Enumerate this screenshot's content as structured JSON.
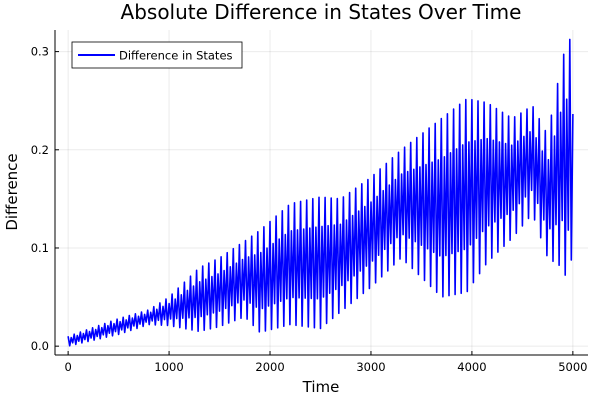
{
  "chart_data": {
    "type": "line",
    "title": "Absolute Difference in States Over Time",
    "xlabel": "Time",
    "ylabel": "Difference",
    "xlim": [
      -130,
      5150
    ],
    "ylim": [
      -0.009,
      0.322
    ],
    "xticks": [
      0,
      1000,
      2000,
      3000,
      4000,
      5000
    ],
    "xtick_labels": [
      "0",
      "1000",
      "2000",
      "3000",
      "4000",
      "5000"
    ],
    "yticks": [
      0.0,
      0.1,
      0.2,
      0.3
    ],
    "ytick_labels": [
      "0.0",
      "0.1",
      "0.2",
      "0.3"
    ],
    "grid": true,
    "legend_position": "top-left",
    "series": [
      {
        "name": "Difference in States",
        "color": "#0000ff",
        "oscillation_periods": 165,
        "envelope": {
          "time": [
            0,
            500,
            800,
            1000,
            1300,
            1500,
            1750,
            1900,
            2200,
            2500,
            2700,
            3000,
            3300,
            3700,
            3950,
            4150,
            4400,
            4600,
            4750,
            4900,
            4980,
            5000
          ],
          "upper": [
            0.01,
            0.028,
            0.037,
            0.05,
            0.08,
            0.09,
            0.107,
            0.118,
            0.145,
            0.152,
            0.15,
            0.172,
            0.2,
            0.232,
            0.252,
            0.248,
            0.232,
            0.245,
            0.215,
            0.295,
            0.315,
            0.25
          ],
          "lower": [
            0.0,
            0.012,
            0.022,
            0.021,
            0.015,
            0.02,
            0.03,
            0.014,
            0.022,
            0.018,
            0.035,
            0.06,
            0.09,
            0.05,
            0.055,
            0.085,
            0.11,
            0.135,
            0.09,
            0.08,
            0.055,
            0.19
          ]
        }
      }
    ]
  }
}
